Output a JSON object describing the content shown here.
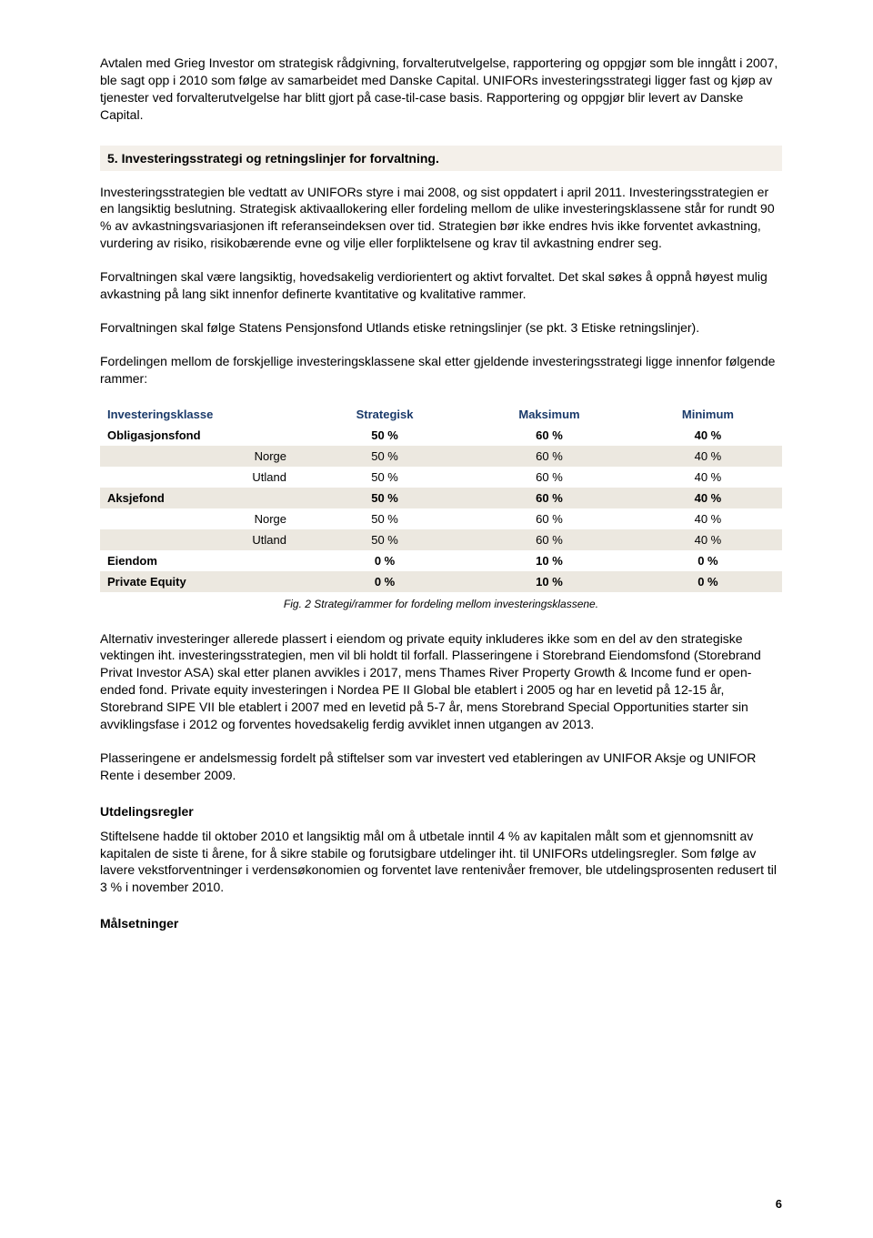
{
  "para1": "Avtalen med Grieg Investor om strategisk rådgivning, forvalterutvelgelse, rapportering og oppgjør som ble inngått i 2007, ble sagt opp i 2010 som følge av samarbeidet med Danske Capital. UNIFORs investeringsstrategi ligger fast og kjøp av tjenester ved forvalterutvelgelse har blitt gjort på case-til-case basis. Rapportering og oppgjør blir levert av Danske Capital.",
  "section5_title": "5.  Investeringsstrategi og retningslinjer for forvaltning.",
  "para2": "Investeringsstrategien ble vedtatt av UNIFORs styre i mai 2008, og sist oppdatert i april 2011. Investeringsstrategien er en langsiktig beslutning. Strategisk aktivaallokering eller fordeling mellom de ulike investeringsklassene står for rundt 90 % av avkastningsvariasjonen ift referanseindeksen over tid. Strategien bør ikke endres hvis ikke forventet avkastning, vurdering av risiko, risikobærende evne og vilje eller forpliktelsene og krav til avkastning endrer seg.",
  "para3": "Forvaltningen skal være langsiktig, hovedsakelig verdiorientert og aktivt forvaltet. Det skal søkes å oppnå høyest mulig avkastning på lang sikt innenfor definerte kvantitative og kvalitative rammer.",
  "para4": "Forvaltningen skal følge Statens Pensjonsfond Utlands etiske retningslinjer (se pkt. 3 Etiske retningslinjer).",
  "para5": "Fordelingen mellom de forskjellige investeringsklassene skal etter gjeldende investeringsstrategi ligge innenfor følgende rammer:",
  "table": {
    "columns": [
      "Investeringsklasse",
      "Strategisk",
      "Maksimum",
      "Minimum"
    ],
    "header_color": "#1a3a6a",
    "shade_color": "#ece8e0",
    "rows": [
      {
        "label": "Obligasjonsfond",
        "sub": "",
        "vals": [
          "50 %",
          "60 %",
          "40 %"
        ],
        "bold": true,
        "shade": false
      },
      {
        "label": "",
        "sub": "Norge",
        "vals": [
          "50 %",
          "60 %",
          "40 %"
        ],
        "bold": false,
        "shade": true
      },
      {
        "label": "",
        "sub": "Utland",
        "vals": [
          "50 %",
          "60 %",
          "40 %"
        ],
        "bold": false,
        "shade": false
      },
      {
        "label": "Aksjefond",
        "sub": "",
        "vals": [
          "50 %",
          "60 %",
          "40 %"
        ],
        "bold": true,
        "shade": true
      },
      {
        "label": "",
        "sub": "Norge",
        "vals": [
          "50 %",
          "60 %",
          "40 %"
        ],
        "bold": false,
        "shade": false
      },
      {
        "label": "",
        "sub": "Utland",
        "vals": [
          "50 %",
          "60 %",
          "40 %"
        ],
        "bold": false,
        "shade": true
      },
      {
        "label": "Eiendom",
        "sub": "",
        "vals": [
          "0 %",
          "10 %",
          "0 %"
        ],
        "bold": true,
        "shade": false
      },
      {
        "label": "Private Equity",
        "sub": "",
        "vals": [
          "0 %",
          "10 %",
          "0 %"
        ],
        "bold": true,
        "shade": true
      }
    ]
  },
  "caption": "Fig. 2 Strategi/rammer for fordeling mellom investeringsklassene.",
  "para6": "Alternativ investeringer allerede plassert i eiendom og private equity inkluderes ikke som en del av den strategiske vektingen iht. investeringsstrategien, men vil bli holdt til forfall. Plasseringene i Storebrand Eiendomsfond (Storebrand Privat Investor ASA) skal etter planen avvikles i 2017, mens Thames River Property Growth & Income fund er open-ended fond. Private equity investeringen i Nordea PE II Global ble etablert i 2005 og har en levetid på 12-15 år, Storebrand SIPE VII ble etablert i 2007 med en levetid på 5-7 år, mens Storebrand Special Opportunities starter sin avviklingsfase i 2012 og forventes hovedsakelig ferdig avviklet innen utgangen av 2013.",
  "para7": "Plasseringene er andelsmessig fordelt på stiftelser som var investert ved etableringen av UNIFOR Aksje og UNIFOR Rente i desember 2009.",
  "sub_utdeling": "Utdelingsregler",
  "para8": "Stiftelsene hadde til oktober 2010 et langsiktig mål om å utbetale inntil 4 % av kapitalen målt som et gjennomsnitt av kapitalen de siste ti årene, for å sikre stabile og forutsigbare utdelinger iht. til UNIFORs utdelingsregler. Som følge av lavere vekstforventninger i verdensøkonomien og forventet lave rentenivåer fremover, ble utdelingsprosenten redusert til 3 % i november 2010.",
  "sub_malsetninger": "Målsetninger",
  "pagenum": "6"
}
